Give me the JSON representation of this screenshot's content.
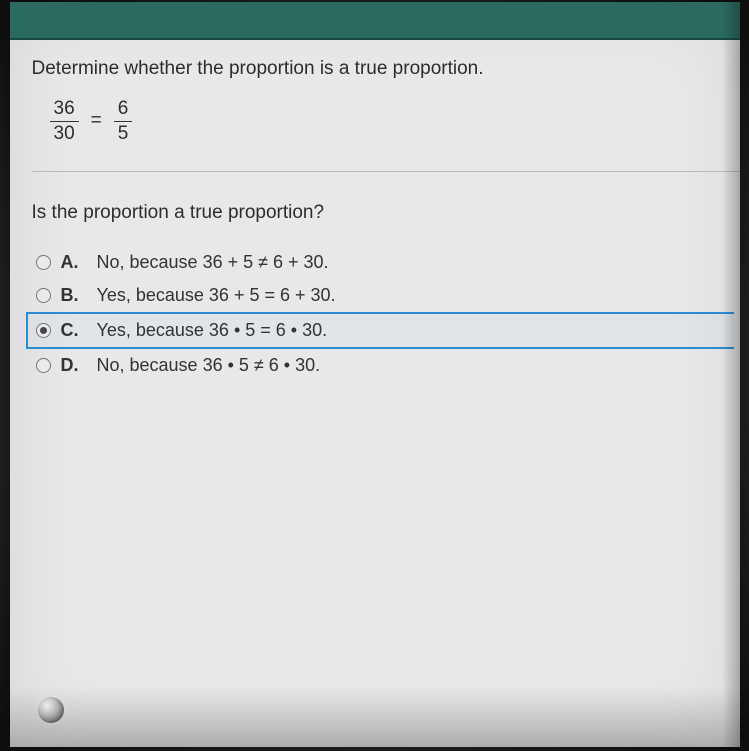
{
  "colors": {
    "topbar_bg": "#2b6b5f",
    "topbar_border": "#1a4940",
    "page_bg": "#e8e8ea",
    "text": "#2d2d2d",
    "divider": "#b8b8ba",
    "selection_border": "#2a8bd0",
    "radio_border": "#777",
    "radio_fill": "#444"
  },
  "typography": {
    "family": "Arial",
    "question_fontsize_pt": 14,
    "option_fontsize_pt": 13
  },
  "question": {
    "prompt": "Determine whether the proportion is a true proportion.",
    "fraction1": {
      "num": "36",
      "den": "30"
    },
    "equals": "=",
    "fraction2": {
      "num": "6",
      "den": "5"
    },
    "sub_prompt": "Is the proportion a true proportion?"
  },
  "options": [
    {
      "label": "A.",
      "text": "No, because 36 + 5 ≠ 6 + 30.",
      "selected": false
    },
    {
      "label": "B.",
      "text": "Yes, because 36 + 5 = 6 + 30.",
      "selected": false
    },
    {
      "label": "C.",
      "text": "Yes, because 36 • 5 = 6 • 30.",
      "selected": true
    },
    {
      "label": "D.",
      "text": "No, because 36 • 5 ≠ 6 • 30.",
      "selected": false
    }
  ]
}
